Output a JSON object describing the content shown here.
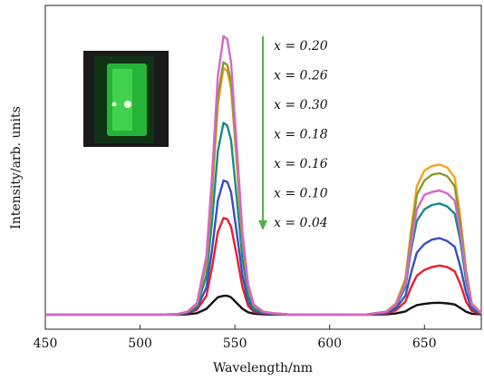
{
  "chart_data": {
    "type": "line",
    "xlabel": "Wavelength/nm",
    "ylabel": "Intensity/arb. units",
    "xlim": [
      450,
      680
    ],
    "x_ticks": [
      450,
      500,
      550,
      600,
      650
    ],
    "x_tick_labels": [
      "450",
      "500",
      "550",
      "600",
      "650"
    ],
    "grid": false,
    "legend_placement": "top-center",
    "legend_note": "arrow pointing downward along the x labels",
    "x": [
      450,
      510,
      520,
      525,
      530,
      535,
      538,
      541,
      544,
      546,
      548,
      551,
      554,
      557,
      560,
      565,
      570,
      580,
      600,
      620,
      630,
      635,
      640,
      643,
      646,
      650,
      654,
      658,
      662,
      666,
      669,
      672,
      675,
      680
    ],
    "series": [
      {
        "name": "x = 0.20",
        "color": "#d966c8",
        "values": [
          0.035,
          0.035,
          0.037,
          0.045,
          0.075,
          0.24,
          0.52,
          0.86,
          1.0,
          0.99,
          0.91,
          0.62,
          0.32,
          0.14,
          0.07,
          0.045,
          0.04,
          0.035,
          0.035,
          0.036,
          0.045,
          0.07,
          0.14,
          0.28,
          0.4,
          0.45,
          0.46,
          0.465,
          0.455,
          0.43,
          0.32,
          0.17,
          0.07,
          0.04
        ]
      },
      {
        "name": "x = 0.26",
        "color": "#8a9a30",
        "values": [
          0.035,
          0.035,
          0.037,
          0.045,
          0.072,
          0.22,
          0.47,
          0.79,
          0.91,
          0.9,
          0.84,
          0.58,
          0.3,
          0.13,
          0.065,
          0.045,
          0.04,
          0.035,
          0.035,
          0.036,
          0.045,
          0.07,
          0.15,
          0.31,
          0.45,
          0.5,
          0.52,
          0.525,
          0.515,
          0.48,
          0.35,
          0.18,
          0.07,
          0.04
        ]
      },
      {
        "name": "x = 0.30",
        "color": "#f7a21b",
        "values": [
          0.035,
          0.035,
          0.037,
          0.045,
          0.07,
          0.21,
          0.45,
          0.76,
          0.89,
          0.88,
          0.82,
          0.56,
          0.29,
          0.13,
          0.065,
          0.045,
          0.04,
          0.035,
          0.035,
          0.036,
          0.046,
          0.075,
          0.16,
          0.33,
          0.48,
          0.535,
          0.55,
          0.555,
          0.545,
          0.51,
          0.37,
          0.19,
          0.075,
          0.04
        ]
      },
      {
        "name": "x = 0.18",
        "color": "#1a8a86",
        "values": [
          0.035,
          0.035,
          0.036,
          0.043,
          0.065,
          0.17,
          0.36,
          0.6,
          0.7,
          0.69,
          0.64,
          0.44,
          0.23,
          0.1,
          0.055,
          0.042,
          0.038,
          0.035,
          0.035,
          0.036,
          0.044,
          0.065,
          0.13,
          0.26,
          0.36,
          0.4,
          0.415,
          0.42,
          0.41,
          0.385,
          0.29,
          0.15,
          0.065,
          0.04
        ]
      },
      {
        "name": "x = 0.16",
        "color": "#3b4ec0",
        "values": [
          0.035,
          0.035,
          0.036,
          0.041,
          0.058,
          0.13,
          0.26,
          0.43,
          0.5,
          0.495,
          0.46,
          0.32,
          0.17,
          0.08,
          0.05,
          0.04,
          0.037,
          0.035,
          0.035,
          0.036,
          0.041,
          0.058,
          0.1,
          0.18,
          0.25,
          0.28,
          0.295,
          0.3,
          0.29,
          0.27,
          0.2,
          0.11,
          0.055,
          0.038
        ]
      },
      {
        "name": "x = 0.10",
        "color": "#e8202a",
        "values": [
          0.035,
          0.035,
          0.036,
          0.04,
          0.052,
          0.1,
          0.2,
          0.32,
          0.37,
          0.365,
          0.34,
          0.24,
          0.13,
          0.065,
          0.045,
          0.039,
          0.036,
          0.035,
          0.035,
          0.035,
          0.039,
          0.05,
          0.08,
          0.13,
          0.17,
          0.19,
          0.2,
          0.205,
          0.2,
          0.185,
          0.14,
          0.08,
          0.048,
          0.037
        ]
      },
      {
        "name": "x = 0.04",
        "color": "#111111",
        "values": [
          0.035,
          0.035,
          0.035,
          0.036,
          0.04,
          0.055,
          0.075,
          0.095,
          0.1,
          0.1,
          0.095,
          0.075,
          0.055,
          0.043,
          0.038,
          0.036,
          0.035,
          0.035,
          0.035,
          0.035,
          0.036,
          0.039,
          0.046,
          0.058,
          0.068,
          0.072,
          0.075,
          0.076,
          0.074,
          0.07,
          0.058,
          0.045,
          0.038,
          0.036
        ]
      }
    ]
  },
  "legend_labels": [
    "x = 0.20",
    "x = 0.26",
    "x = 0.30",
    "x = 0.18",
    "x = 0.16",
    "x = 0.10",
    "x = 0.04"
  ],
  "arrow_color": "#55b04a",
  "inset": {
    "description_color": "#2bd63a"
  }
}
